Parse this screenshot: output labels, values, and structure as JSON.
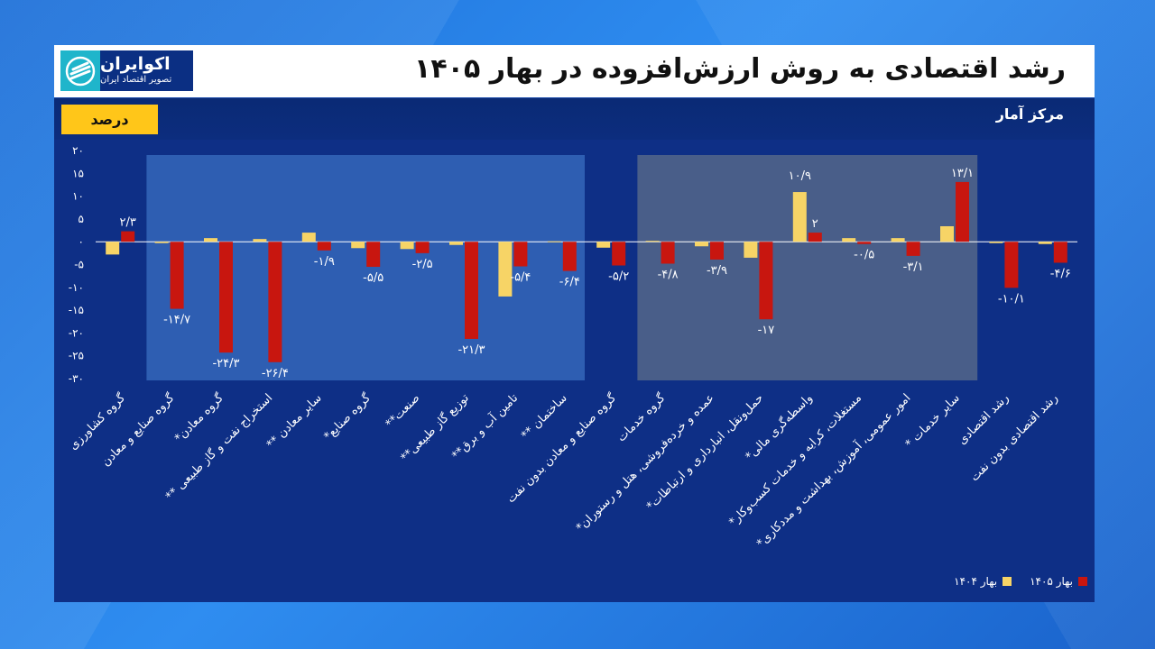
{
  "title": "رشد اقتصادی به روش ارزش‌افزوده در بهار ۱۴۰۵",
  "source": "مرکز آمار",
  "unit": "درصد",
  "logo": {
    "name": "اکوایران",
    "tagline": "تصویر اقتصاد ایران"
  },
  "colors": {
    "series_1404": "#f7d466",
    "series_1405": "#c8160f",
    "highlight_left": "#3a6fc0",
    "highlight_right": "#5e6f8a"
  },
  "chart_data": {
    "type": "bar",
    "ylim": [
      -30,
      20
    ],
    "yticks": [
      20,
      15,
      10,
      5,
      0,
      -5,
      -10,
      -15,
      -20,
      -25,
      -30
    ],
    "ytick_labels": [
      "۲۰",
      "۱۵",
      "۱۰",
      "۵",
      "۰",
      "-۵",
      "-۱۰",
      "-۱۵",
      "-۲۰",
      "-۲۵",
      "-۳۰"
    ],
    "legend_position": "bottom-right",
    "categories": [
      "گروه کشاورزی",
      "گروه صنایع و معادن",
      "*گروه معادن",
      "** استخراج نفت و گاز طبیعی",
      "** سایر معادن",
      "*گروه صنایع",
      "**صنعت",
      "**توزیع گاز طبیعی",
      "**تامین آب و برق",
      "** ساختمان",
      "گروه صنایع و معادن بدون نفت",
      "گروه خدمات",
      "*عمده و خرده‌فروشی، هتل و رستوران",
      "*حمل‌ونقل، انبارداری و ارتباطات",
      "*واسطه‌گری مالی",
      "*مستغلات، کرایه و خدمات کسب‌وکار",
      "*امور عمومی، آموزش، بهداشت و مددکاری",
      "* سایر خدمات",
      "رشد اقتصادی",
      "رشد اقتصادی بدون نفت"
    ],
    "series": [
      {
        "name": "بهار ۱۴۰۴",
        "values": [
          -2.8,
          -0.3,
          0.8,
          0.6,
          2.0,
          -1.4,
          -1.6,
          -0.7,
          -12.0,
          0.1,
          -1.3,
          0.2,
          -1.0,
          -3.5,
          10.9,
          0.8,
          0.8,
          3.4,
          -0.3,
          -0.5
        ]
      },
      {
        "name": "بهار ۱۴۰۵",
        "values": [
          2.3,
          -14.7,
          -24.3,
          -26.4,
          -1.9,
          -5.5,
          -2.5,
          -21.3,
          -5.4,
          -6.4,
          -5.2,
          -4.8,
          -3.9,
          -17.0,
          2.0,
          -0.5,
          -3.1,
          13.1,
          -10.1,
          -4.6
        ]
      }
    ],
    "value_labels": [
      "۲/۳",
      "-۱۴/۷",
      "-۲۴/۳",
      "-۲۶/۴",
      "-۱/۹",
      "-۵/۵",
      "-۲/۵",
      "-۲۱/۳",
      "-۵/۴",
      "-۶/۴",
      "-۵/۲",
      "-۴/۸",
      "-۳/۹",
      "-۱۷",
      "۲",
      "-۰/۵",
      "-۳/۱",
      "۱۳/۱",
      "-۱۰/۱",
      "-۴/۶"
    ],
    "extra_label_1404": {
      "index": 14,
      "text": "۱۰/۹"
    },
    "highlight_ranges": [
      {
        "from_index": 1,
        "to_index": 9
      },
      {
        "from_index": 11,
        "to_index": 17
      }
    ]
  }
}
